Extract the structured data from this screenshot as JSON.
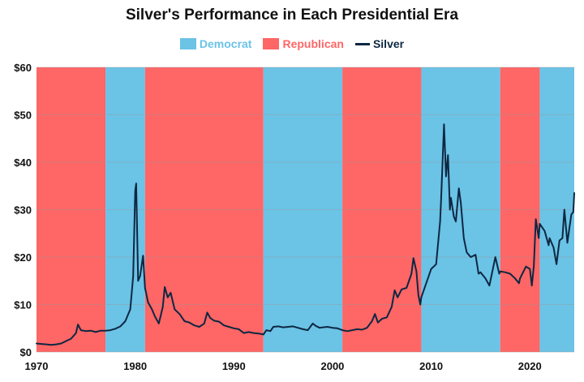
{
  "chart_data": {
    "type": "area",
    "title": "Silver's Performance in Each Presidential Era",
    "xlabel": "",
    "ylabel": "",
    "xlim": [
      1970,
      2024.5
    ],
    "ylim": [
      0,
      60
    ],
    "x_ticks": [
      "1970",
      "1980",
      "1990",
      "2000",
      "2010",
      "2020"
    ],
    "x_tick_values": [
      1970,
      1980,
      1990,
      2000,
      2010,
      2020
    ],
    "y_ticks": [
      "$0",
      "$10",
      "$20",
      "$30",
      "$40",
      "$50",
      "$60"
    ],
    "y_tick_values": [
      0,
      10,
      20,
      30,
      40,
      50,
      60
    ],
    "grid": true,
    "legend_position": "top-center",
    "legend": [
      {
        "name": "Democrat",
        "color": "#6BC3E6",
        "kind": "area"
      },
      {
        "name": "Republican",
        "color": "#FF6666",
        "kind": "area"
      },
      {
        "name": "Silver",
        "color": "#0D2742",
        "kind": "line"
      }
    ],
    "eras": [
      {
        "party": "Republican",
        "start": 1970,
        "end": 1977
      },
      {
        "party": "Democrat",
        "start": 1977,
        "end": 1981
      },
      {
        "party": "Republican",
        "start": 1981,
        "end": 1993
      },
      {
        "party": "Democrat",
        "start": 1993,
        "end": 2001
      },
      {
        "party": "Republican",
        "start": 2001,
        "end": 2009
      },
      {
        "party": "Democrat",
        "start": 2009,
        "end": 2017
      },
      {
        "party": "Republican",
        "start": 2017,
        "end": 2021
      },
      {
        "party": "Democrat",
        "start": 2021,
        "end": 2024.5
      }
    ],
    "series": [
      {
        "name": "Silver",
        "color": "#0D2742",
        "points": [
          [
            1970,
            1.8
          ],
          [
            1970.5,
            1.7
          ],
          [
            1971,
            1.6
          ],
          [
            1971.5,
            1.5
          ],
          [
            1972,
            1.6
          ],
          [
            1972.5,
            1.8
          ],
          [
            1973,
            2.3
          ],
          [
            1973.5,
            2.8
          ],
          [
            1974,
            4.0
          ],
          [
            1974.2,
            5.8
          ],
          [
            1974.5,
            4.6
          ],
          [
            1975,
            4.4
          ],
          [
            1975.5,
            4.5
          ],
          [
            1976,
            4.2
          ],
          [
            1976.5,
            4.5
          ],
          [
            1977,
            4.5
          ],
          [
            1977.5,
            4.6
          ],
          [
            1978,
            4.9
          ],
          [
            1978.5,
            5.4
          ],
          [
            1979,
            6.5
          ],
          [
            1979.5,
            9.0
          ],
          [
            1979.8,
            16.0
          ],
          [
            1980,
            34.0
          ],
          [
            1980.1,
            35.5
          ],
          [
            1980.3,
            15.0
          ],
          [
            1980.5,
            16.0
          ],
          [
            1980.8,
            20.3
          ],
          [
            1981,
            13.5
          ],
          [
            1981.3,
            10.5
          ],
          [
            1981.7,
            9.0
          ],
          [
            1982,
            7.5
          ],
          [
            1982.4,
            6.0
          ],
          [
            1982.8,
            9.5
          ],
          [
            1983,
            13.7
          ],
          [
            1983.3,
            11.5
          ],
          [
            1983.6,
            12.5
          ],
          [
            1984,
            9.0
          ],
          [
            1984.5,
            8.0
          ],
          [
            1985,
            6.5
          ],
          [
            1985.5,
            6.2
          ],
          [
            1986,
            5.6
          ],
          [
            1986.5,
            5.3
          ],
          [
            1987,
            6.0
          ],
          [
            1987.3,
            8.3
          ],
          [
            1987.6,
            7.2
          ],
          [
            1988,
            6.6
          ],
          [
            1988.5,
            6.4
          ],
          [
            1989,
            5.6
          ],
          [
            1989.5,
            5.3
          ],
          [
            1990,
            5.0
          ],
          [
            1990.5,
            4.8
          ],
          [
            1991,
            4.0
          ],
          [
            1991.5,
            4.2
          ],
          [
            1992,
            4.0
          ],
          [
            1992.5,
            3.9
          ],
          [
            1993,
            3.7
          ],
          [
            1993.3,
            4.6
          ],
          [
            1993.7,
            4.4
          ],
          [
            1994,
            5.3
          ],
          [
            1994.5,
            5.4
          ],
          [
            1995,
            5.2
          ],
          [
            1995.5,
            5.3
          ],
          [
            1996,
            5.4
          ],
          [
            1996.5,
            5.1
          ],
          [
            1997,
            4.8
          ],
          [
            1997.5,
            4.6
          ],
          [
            1998,
            6.0
          ],
          [
            1998.3,
            5.5
          ],
          [
            1998.7,
            5.1
          ],
          [
            1999,
            5.2
          ],
          [
            1999.5,
            5.3
          ],
          [
            2000,
            5.1
          ],
          [
            2000.5,
            5.0
          ],
          [
            2001,
            4.6
          ],
          [
            2001.5,
            4.4
          ],
          [
            2002,
            4.6
          ],
          [
            2002.5,
            4.8
          ],
          [
            2003,
            4.7
          ],
          [
            2003.5,
            5.1
          ],
          [
            2004,
            6.5
          ],
          [
            2004.3,
            8.0
          ],
          [
            2004.6,
            6.2
          ],
          [
            2005,
            7.0
          ],
          [
            2005.5,
            7.3
          ],
          [
            2006,
            9.5
          ],
          [
            2006.3,
            13.0
          ],
          [
            2006.6,
            11.5
          ],
          [
            2007,
            13.2
          ],
          [
            2007.5,
            13.5
          ],
          [
            2008,
            16.5
          ],
          [
            2008.2,
            19.8
          ],
          [
            2008.5,
            17.0
          ],
          [
            2008.7,
            12.0
          ],
          [
            2008.9,
            10.0
          ],
          [
            2009,
            11.5
          ],
          [
            2009.5,
            14.5
          ],
          [
            2010,
            17.5
          ],
          [
            2010.5,
            18.5
          ],
          [
            2010.9,
            27.5
          ],
          [
            2011,
            32.0
          ],
          [
            2011.3,
            48.0
          ],
          [
            2011.5,
            37.0
          ],
          [
            2011.7,
            41.5
          ],
          [
            2011.9,
            30.0
          ],
          [
            2012,
            32.5
          ],
          [
            2012.3,
            28.5
          ],
          [
            2012.5,
            27.5
          ],
          [
            2012.8,
            34.5
          ],
          [
            2013,
            31.5
          ],
          [
            2013.3,
            24.0
          ],
          [
            2013.6,
            21.0
          ],
          [
            2014,
            20.0
          ],
          [
            2014.5,
            20.5
          ],
          [
            2014.8,
            16.5
          ],
          [
            2015,
            16.8
          ],
          [
            2015.5,
            15.5
          ],
          [
            2015.9,
            14.0
          ],
          [
            2016,
            15.0
          ],
          [
            2016.5,
            20.0
          ],
          [
            2016.9,
            16.5
          ],
          [
            2017,
            17.0
          ],
          [
            2017.5,
            16.8
          ],
          [
            2018,
            16.5
          ],
          [
            2018.5,
            15.5
          ],
          [
            2018.9,
            14.5
          ],
          [
            2019,
            15.5
          ],
          [
            2019.6,
            18.0
          ],
          [
            2020,
            17.5
          ],
          [
            2020.2,
            14.0
          ],
          [
            2020.4,
            18.0
          ],
          [
            2020.6,
            28.0
          ],
          [
            2020.9,
            24.0
          ],
          [
            2021,
            27.0
          ],
          [
            2021.5,
            25.5
          ],
          [
            2021.9,
            22.5
          ],
          [
            2022,
            24.0
          ],
          [
            2022.4,
            22.0
          ],
          [
            2022.7,
            18.5
          ],
          [
            2023,
            23.5
          ],
          [
            2023.3,
            24.0
          ],
          [
            2023.5,
            30.0
          ],
          [
            2023.8,
            23.0
          ],
          [
            2024,
            26.0
          ],
          [
            2024.2,
            29.0
          ],
          [
            2024.4,
            29.5
          ],
          [
            2024.5,
            33.5
          ]
        ]
      }
    ]
  }
}
